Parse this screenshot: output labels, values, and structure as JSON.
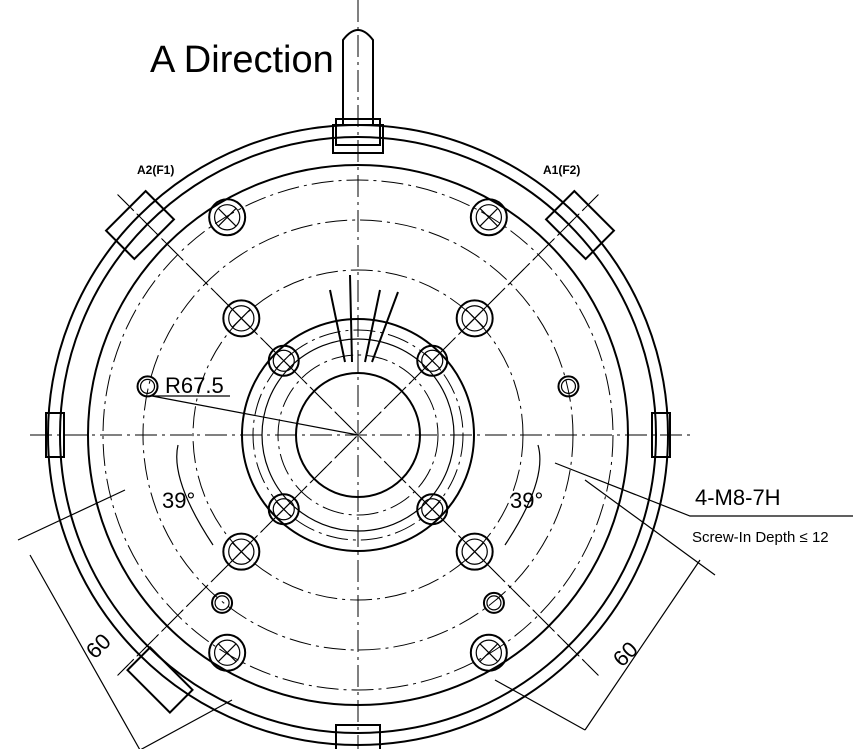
{
  "title": "A Direction",
  "terminals": [
    "A2(F1)",
    "A1(F2)"
  ],
  "dimensions": {
    "radius": "R67.5",
    "angles": [
      "39°",
      "39°"
    ],
    "spacing": [
      "60",
      "60"
    ]
  },
  "thread": {
    "spec": "4-M8-7H",
    "note": "Screw-In Depth ≤ 12"
  }
}
